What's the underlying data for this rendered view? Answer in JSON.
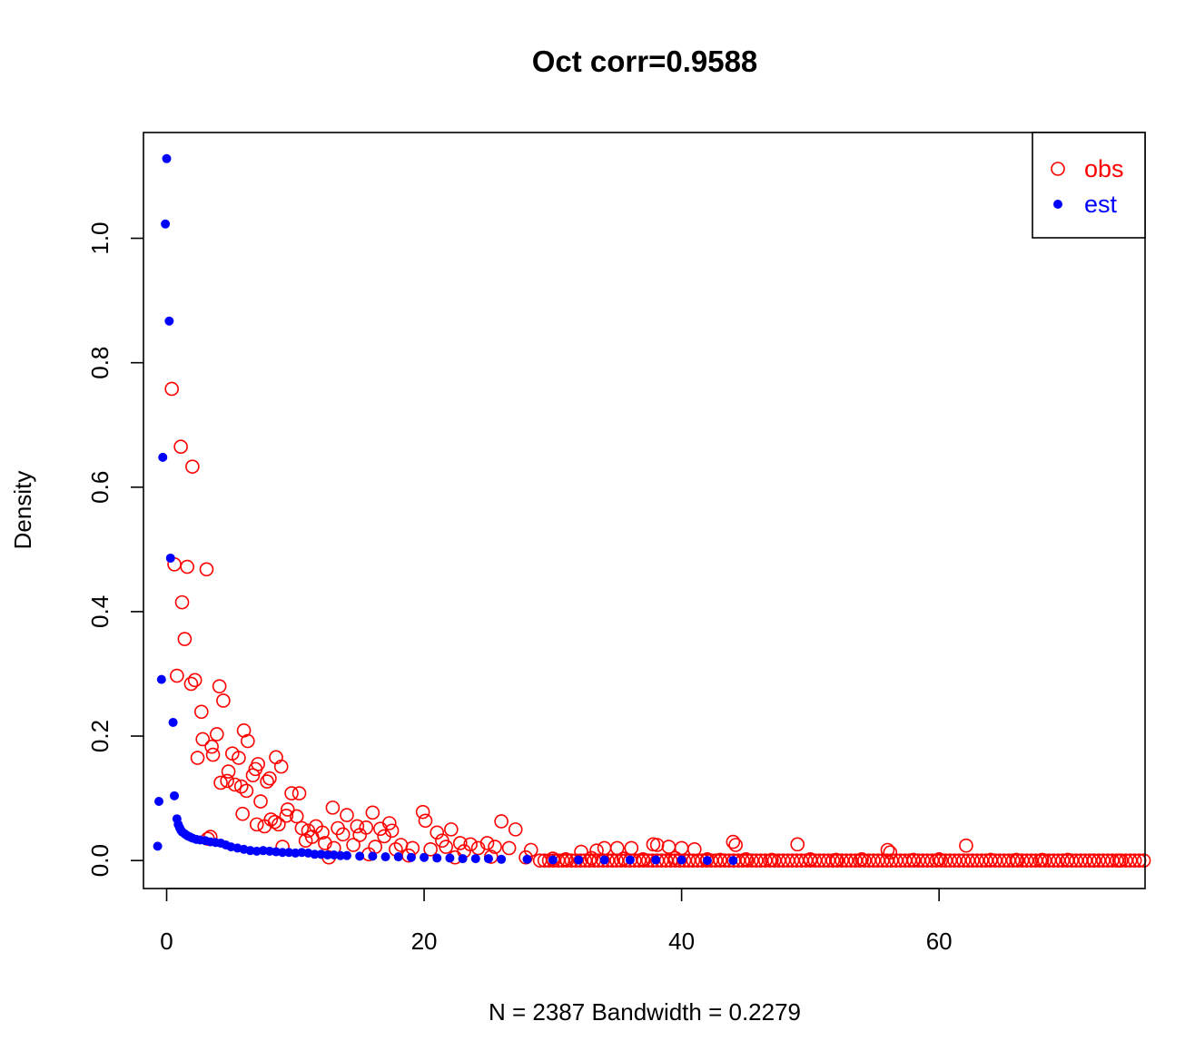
{
  "chart_data": {
    "type": "scatter",
    "title": "Oct corr=0.9588",
    "xlabel": "N = 2387   Bandwidth = 0.2279",
    "ylabel": "Density",
    "xlim": [
      -1.8,
      76
    ],
    "ylim": [
      -0.045,
      1.17
    ],
    "x_ticks": [
      0,
      20,
      40,
      60
    ],
    "y_ticks": [
      0.0,
      0.2,
      0.4,
      0.6,
      0.8,
      1.0
    ],
    "x_tick_labels": [
      "0",
      "20",
      "40",
      "60"
    ],
    "y_tick_labels": [
      "0.0",
      "0.2",
      "0.4",
      "0.6",
      "0.8",
      "1.0"
    ],
    "legend": {
      "position": "top-right",
      "entries": [
        {
          "label": "obs",
          "color": "#ff0000",
          "marker": "open-circle"
        },
        {
          "label": "est",
          "color": "#0000ff",
          "marker": "filled-circle"
        }
      ]
    },
    "series": [
      {
        "name": "obs",
        "color": "#ff0000",
        "marker": "open-circle",
        "points": [
          [
            0.4,
            0.758
          ],
          [
            1.1,
            0.665
          ],
          [
            2.0,
            0.633
          ],
          [
            0.6,
            0.476
          ],
          [
            1.6,
            0.472
          ],
          [
            3.1,
            0.468
          ],
          [
            1.2,
            0.415
          ],
          [
            1.4,
            0.356
          ],
          [
            0.8,
            0.297
          ],
          [
            2.2,
            0.29
          ],
          [
            1.9,
            0.284
          ],
          [
            4.1,
            0.28
          ],
          [
            4.4,
            0.257
          ],
          [
            2.7,
            0.239
          ],
          [
            3.9,
            0.203
          ],
          [
            6.0,
            0.209
          ],
          [
            2.8,
            0.195
          ],
          [
            6.3,
            0.192
          ],
          [
            3.5,
            0.183
          ],
          [
            3.6,
            0.17
          ],
          [
            5.1,
            0.172
          ],
          [
            5.6,
            0.165
          ],
          [
            2.4,
            0.165
          ],
          [
            8.5,
            0.166
          ],
          [
            8.9,
            0.151
          ],
          [
            7.1,
            0.155
          ],
          [
            6.9,
            0.147
          ],
          [
            4.8,
            0.143
          ],
          [
            6.7,
            0.137
          ],
          [
            8.0,
            0.132
          ],
          [
            4.2,
            0.125
          ],
          [
            4.7,
            0.128
          ],
          [
            5.3,
            0.122
          ],
          [
            5.8,
            0.119
          ],
          [
            6.2,
            0.112
          ],
          [
            7.8,
            0.127
          ],
          [
            9.7,
            0.108
          ],
          [
            10.3,
            0.108
          ],
          [
            7.3,
            0.095
          ],
          [
            9.4,
            0.082
          ],
          [
            10.1,
            0.071
          ],
          [
            5.9,
            0.075
          ],
          [
            7.0,
            0.058
          ],
          [
            7.6,
            0.055
          ],
          [
            8.4,
            0.062
          ],
          [
            8.7,
            0.058
          ],
          [
            9.3,
            0.072
          ],
          [
            8.1,
            0.066
          ],
          [
            10.5,
            0.052
          ],
          [
            11.0,
            0.048
          ],
          [
            12.9,
            0.085
          ],
          [
            14.0,
            0.073
          ],
          [
            16.0,
            0.077
          ],
          [
            19.9,
            0.078
          ],
          [
            20.1,
            0.064
          ],
          [
            17.3,
            0.06
          ],
          [
            11.6,
            0.055
          ],
          [
            13.3,
            0.052
          ],
          [
            14.8,
            0.055
          ],
          [
            15.5,
            0.053
          ],
          [
            16.6,
            0.051
          ],
          [
            17.5,
            0.048
          ],
          [
            21.0,
            0.045
          ],
          [
            22.1,
            0.05
          ],
          [
            26.0,
            0.063
          ],
          [
            27.1,
            0.05
          ],
          [
            12.1,
            0.045
          ],
          [
            13.7,
            0.042
          ],
          [
            15.0,
            0.041
          ],
          [
            16.9,
            0.039
          ],
          [
            11.3,
            0.038
          ],
          [
            18.2,
            0.025
          ],
          [
            19.1,
            0.02
          ],
          [
            21.4,
            0.032
          ],
          [
            22.8,
            0.028
          ],
          [
            23.6,
            0.026
          ],
          [
            24.9,
            0.028
          ],
          [
            25.5,
            0.022
          ],
          [
            9.0,
            0.022
          ],
          [
            10.8,
            0.032
          ],
          [
            12.3,
            0.028
          ],
          [
            13.0,
            0.02
          ],
          [
            14.5,
            0.025
          ],
          [
            16.2,
            0.022
          ],
          [
            17.8,
            0.018
          ],
          [
            20.5,
            0.018
          ],
          [
            21.7,
            0.022
          ],
          [
            23.1,
            0.015
          ],
          [
            24.2,
            0.02
          ],
          [
            26.6,
            0.02
          ],
          [
            28.3,
            0.017
          ],
          [
            12.6,
            0.005
          ],
          [
            15.7,
            0.01
          ],
          [
            18.8,
            0.008
          ],
          [
            22.4,
            0.005
          ],
          [
            25.2,
            0.006
          ],
          [
            27.9,
            0.005
          ],
          [
            3.2,
            0.035
          ],
          [
            3.4,
            0.038
          ],
          [
            32.2,
            0.014
          ],
          [
            33.4,
            0.016
          ],
          [
            34.0,
            0.02
          ],
          [
            35.0,
            0.02
          ],
          [
            36.1,
            0.02
          ],
          [
            37.8,
            0.026
          ],
          [
            38.1,
            0.025
          ],
          [
            39.0,
            0.022
          ],
          [
            40.0,
            0.02
          ],
          [
            41.0,
            0.018
          ],
          [
            44.0,
            0.03
          ],
          [
            44.2,
            0.025
          ],
          [
            49.0,
            0.026
          ],
          [
            56.0,
            0.017
          ],
          [
            56.2,
            0.013
          ],
          [
            62.1,
            0.024
          ],
          [
            30.0,
            0.003
          ],
          [
            31.0,
            0.002
          ],
          [
            33.0,
            0.004
          ],
          [
            35.5,
            0.003
          ],
          [
            37.0,
            0.002
          ],
          [
            39.5,
            0.004
          ],
          [
            42.0,
            0.002
          ],
          [
            43.0,
            0.001
          ],
          [
            45.0,
            0.002
          ],
          [
            47.0,
            0.001
          ],
          [
            50.0,
            0.002
          ],
          [
            52.0,
            0.001
          ],
          [
            54.0,
            0.002
          ],
          [
            58.0,
            0.001
          ],
          [
            60.0,
            0.002
          ],
          [
            64.0,
            0.001
          ],
          [
            66.0,
            0.001
          ],
          [
            68.0,
            0.001
          ],
          [
            70.0,
            0.001
          ],
          [
            72.0,
            0.0
          ],
          [
            74.0,
            0.0
          ]
        ],
        "baseline": {
          "from": 29.0,
          "to": 76.0,
          "step": 0.35,
          "y": 0.0
        }
      },
      {
        "name": "est",
        "color": "#0000ff",
        "marker": "filled-circle",
        "points": [
          [
            0.0,
            1.128
          ],
          [
            -0.1,
            1.023
          ],
          [
            0.2,
            0.867
          ],
          [
            -0.3,
            0.648
          ],
          [
            0.3,
            0.486
          ],
          [
            -0.4,
            0.291
          ],
          [
            0.5,
            0.222
          ],
          [
            0.6,
            0.104
          ],
          [
            -0.6,
            0.095
          ],
          [
            -0.7,
            0.023
          ],
          [
            0.8,
            0.067
          ],
          [
            0.9,
            0.058
          ],
          [
            1.0,
            0.053
          ],
          [
            1.1,
            0.049
          ],
          [
            1.2,
            0.046
          ],
          [
            1.4,
            0.043
          ],
          [
            1.6,
            0.04
          ],
          [
            1.8,
            0.038
          ],
          [
            2.0,
            0.036
          ],
          [
            2.3,
            0.034
          ],
          [
            2.6,
            0.033
          ],
          [
            3.0,
            0.032
          ],
          [
            3.4,
            0.03
          ],
          [
            3.8,
            0.029
          ],
          [
            4.2,
            0.028
          ],
          [
            4.6,
            0.025
          ],
          [
            5.0,
            0.022
          ],
          [
            5.5,
            0.02
          ],
          [
            6.0,
            0.018
          ],
          [
            6.5,
            0.016
          ],
          [
            7.0,
            0.015
          ],
          [
            7.5,
            0.016
          ],
          [
            8.0,
            0.015
          ],
          [
            8.5,
            0.014
          ],
          [
            9.0,
            0.013
          ],
          [
            9.5,
            0.013
          ],
          [
            10.0,
            0.012
          ],
          [
            10.5,
            0.013
          ],
          [
            11.0,
            0.012
          ],
          [
            11.5,
            0.01
          ],
          [
            12.0,
            0.01
          ],
          [
            12.5,
            0.009
          ],
          [
            13.0,
            0.009
          ],
          [
            13.5,
            0.008
          ],
          [
            14.0,
            0.008
          ],
          [
            15.0,
            0.007
          ],
          [
            16.0,
            0.007
          ],
          [
            17.0,
            0.006
          ],
          [
            18.0,
            0.006
          ],
          [
            19.0,
            0.005
          ],
          [
            20.0,
            0.005
          ],
          [
            21.0,
            0.004
          ],
          [
            22.0,
            0.004
          ],
          [
            23.0,
            0.003
          ],
          [
            24.0,
            0.003
          ],
          [
            25.0,
            0.003
          ],
          [
            26.0,
            0.002
          ],
          [
            28.0,
            0.002
          ],
          [
            30.0,
            0.001
          ],
          [
            32.0,
            0.001
          ],
          [
            34.0,
            0.001
          ],
          [
            36.0,
            0.001
          ],
          [
            38.0,
            0.001
          ],
          [
            40.0,
            0.001
          ],
          [
            42.0,
            0.0
          ],
          [
            44.0,
            0.0
          ]
        ]
      }
    ]
  }
}
